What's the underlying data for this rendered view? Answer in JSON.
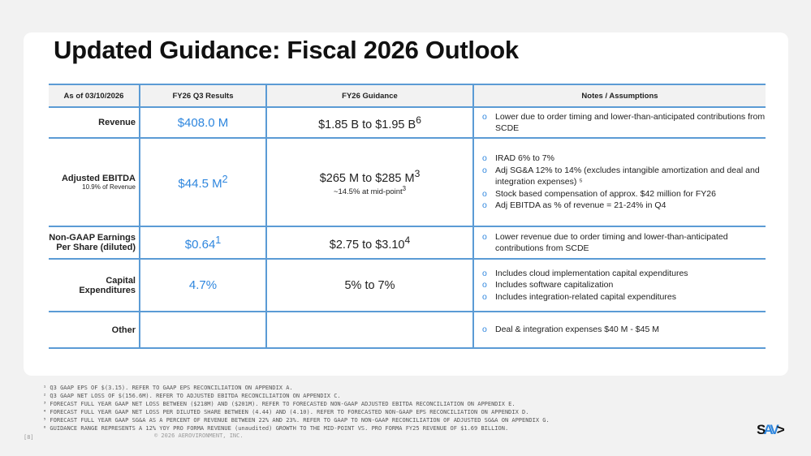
{
  "title": "Updated Guidance: Fiscal 2026 Outlook",
  "table": {
    "headers": [
      "As of 03/10/2026",
      "FY26 Q3 Results",
      "FY26 Guidance",
      "Notes / Assumptions"
    ],
    "rows": [
      {
        "label": "Revenue",
        "result": "$408.0 M",
        "guidance": "$1.85 B to $1.95 B",
        "guidance_sup": "6",
        "notes": [
          "Lower due to order timing and lower-than-anticipated contributions from SCDE"
        ]
      },
      {
        "label": "Adjusted EBITDA",
        "sublabel": "10.9% of Revenue",
        "result": "$44.5 M",
        "result_sup": "2",
        "guidance": "$265 M to $285 M",
        "guidance_sup": "3",
        "guidance_sub": "~14.5% at mid-point",
        "guidance_sub_sup": "3",
        "notes": [
          "IRAD 6% to 7%",
          "Adj SG&A 12% to 14% (excludes intangible amortization and deal and integration expenses) ⁵",
          "Stock based compensation of approx. $42 million for FY26",
          "Adj EBITDA as % of revenue = 21-24% in Q4"
        ]
      },
      {
        "label": "Non-GAAP Earnings Per Share (diluted)",
        "result": "$0.64",
        "result_sup": "1",
        "guidance": "$2.75 to $3.10",
        "guidance_sup": "4",
        "notes": [
          "Lower revenue due to order timing and lower-than-anticipated contributions from SCDE"
        ]
      },
      {
        "label": "Capital Expenditures",
        "result": "4.7%",
        "guidance": "5% to 7%",
        "notes": [
          "Includes cloud implementation capital expenditures",
          "Includes software capitalization",
          "Includes integration-related capital expenditures"
        ]
      },
      {
        "label": "Other",
        "result": "",
        "guidance": "",
        "notes": [
          "Deal & integration expenses $40 M - $45 M"
        ]
      }
    ]
  },
  "footnotes": [
    "¹ Q3 GAAP EPS OF $(3.15). REFER TO GAAP EPS RECONCILIATION ON APPENDIX A.",
    "² Q3 GAAP NET LOSS OF $(156.6M). REFER TO ADJUSTED EBITDA RECONCILIATION ON APPENDIX C.",
    "³ FORECAST FULL YEAR GAAP NET LOSS BETWEEN ($218M) AND ($201M). REFER TO FORECASTED NON-GAAP ADJUSTED EBITDA RECONCILIATION ON APPENDIX E.",
    "⁴ FORECAST FULL YEAR GAAP NET LOSS PER DILUTED SHARE BETWEEN (4.44) AND (4.10). REFER TO FORECASTED NON-GAAP EPS RECONCILIATION ON APPENDIX D.",
    "⁵ FORECAST FULL YEAR GAAP SG&A AS A PERCENT OF REVENUE BETWEEN 22% AND 23%. REFER TO GAAP TO NON-GAAP RECONCILIATION OF ADJUSTED SG&A ON APPENDIX G.",
    "⁶ GUIDANCE RANGE REPRESENTS A 12% YOY PRO FORMA REVENUE (unaudited) GROWTH TO THE MID-POINT VS. PRO FORMA FY25 REVENUE OF $1.69 BILLION."
  ],
  "page_number": "[8]",
  "copyright": "© 2026 AEROVIRONMENT, INC.",
  "logo_text": "AV",
  "colors": {
    "accent": "#2e86de",
    "border": "#5b9bd5"
  }
}
